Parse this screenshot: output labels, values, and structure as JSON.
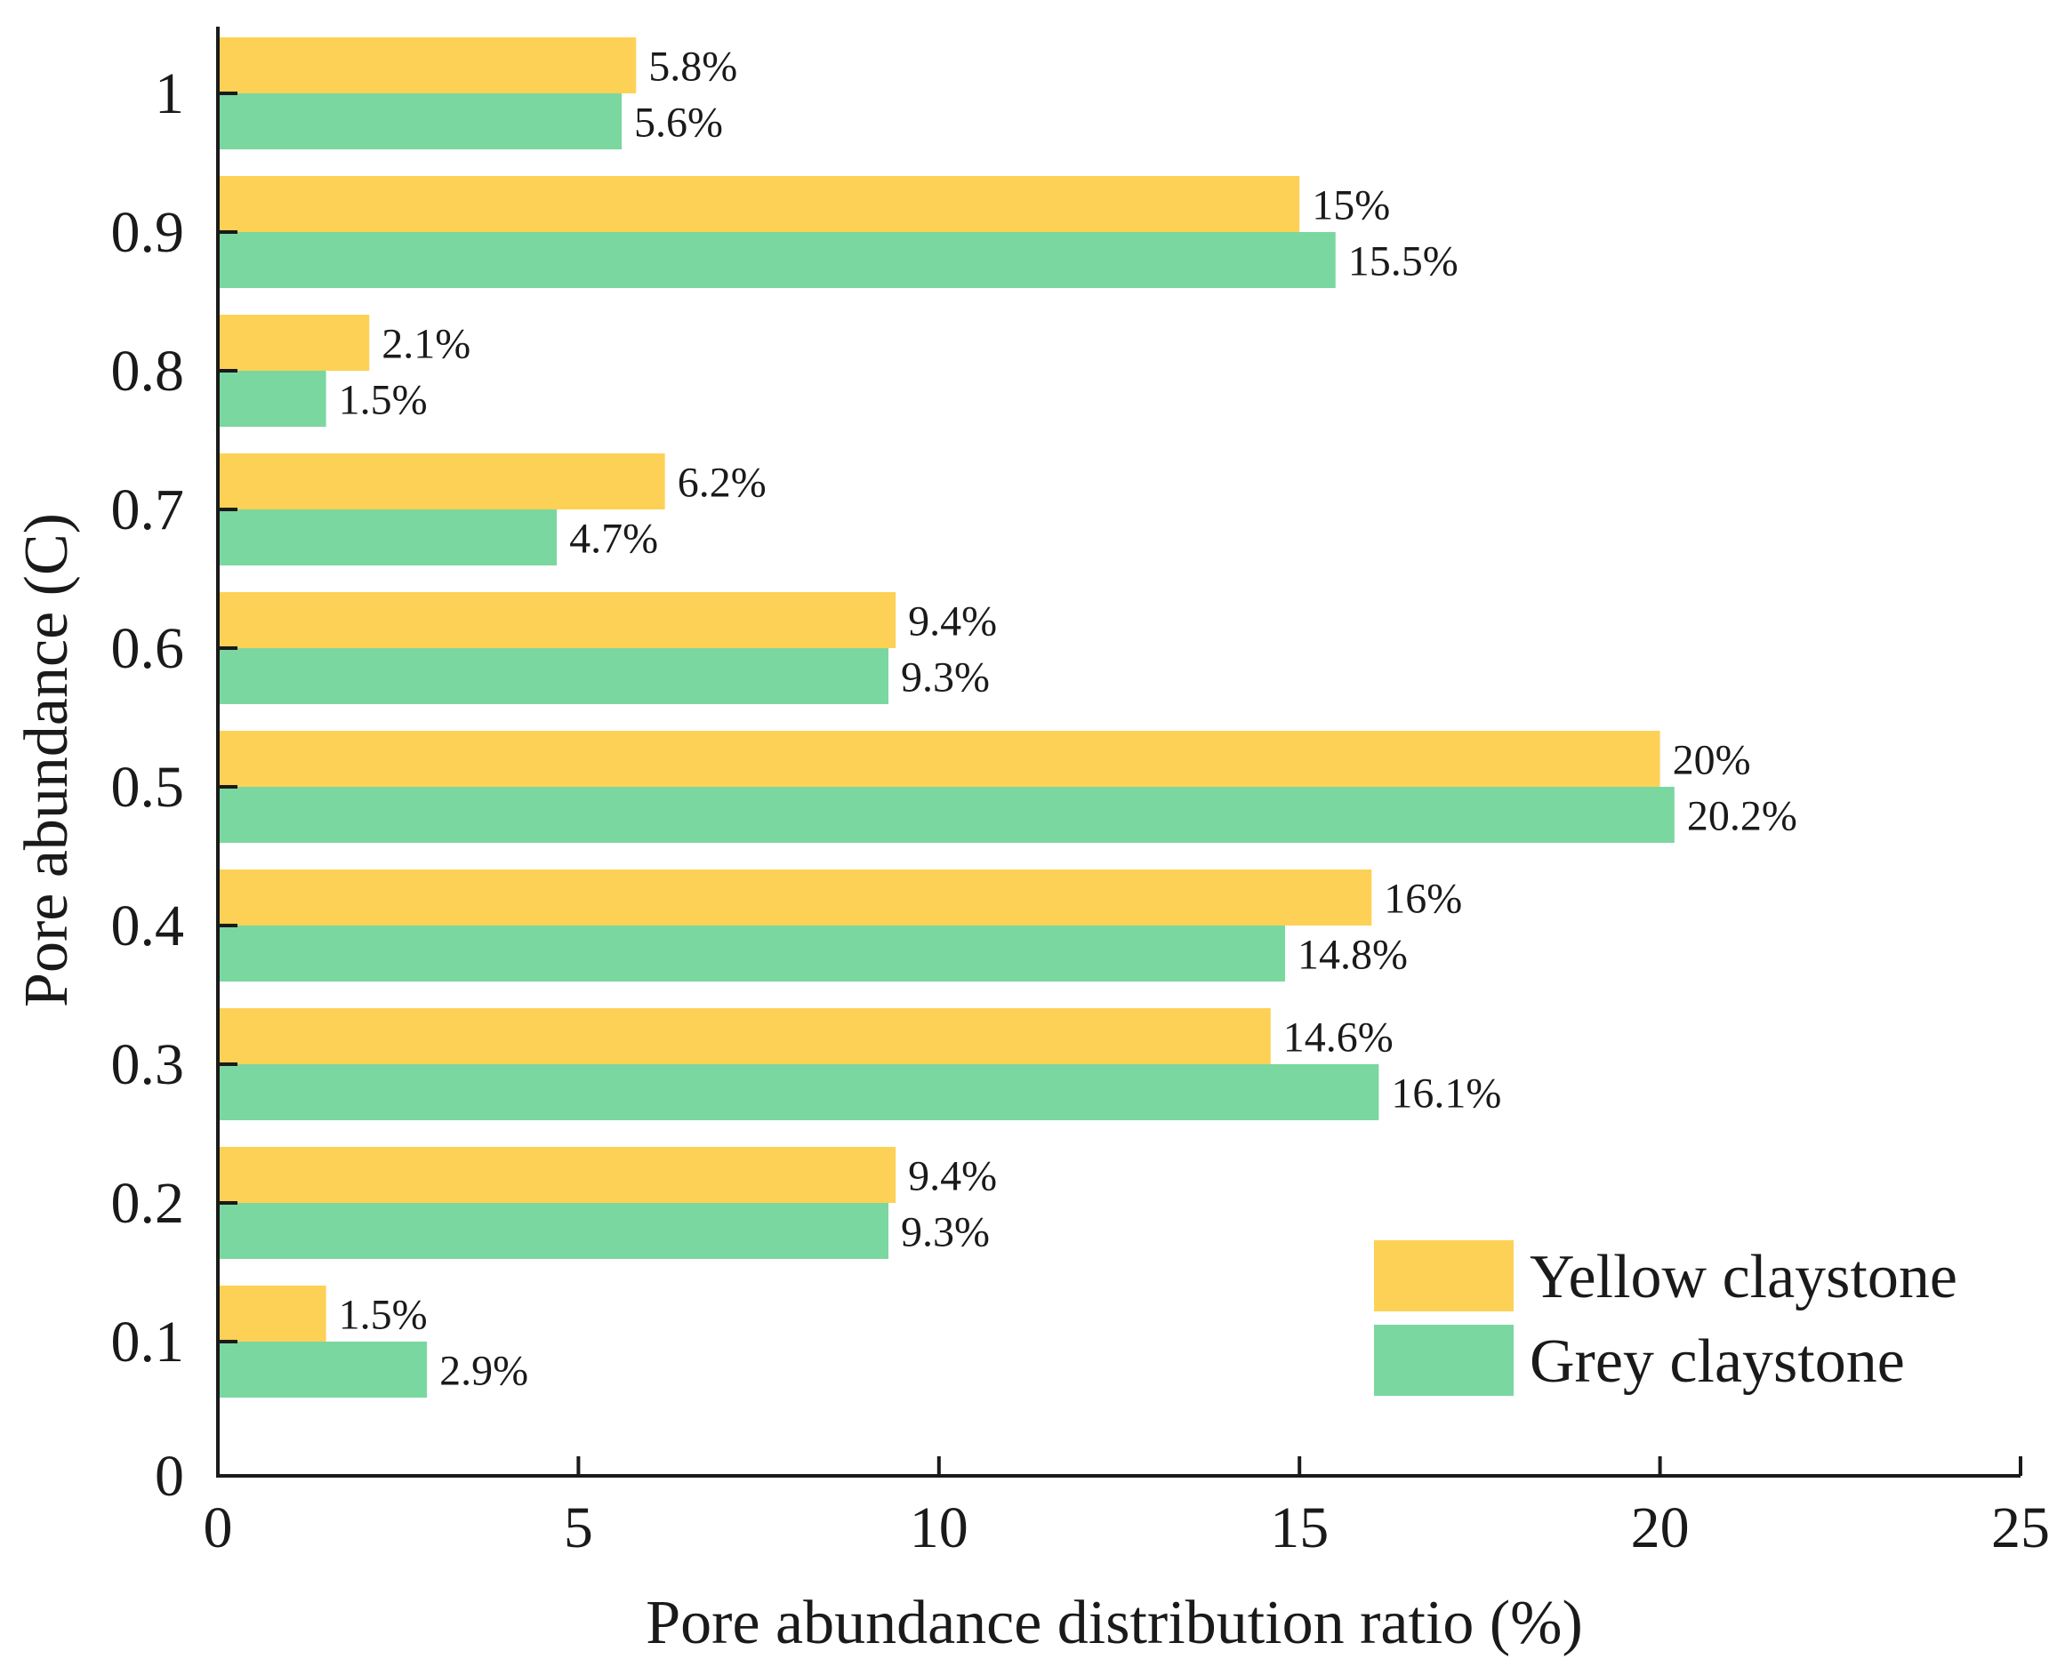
{
  "chart_data": {
    "type": "bar",
    "orientation": "horizontal",
    "xlabel": "Pore abundance distribution ratio (%)",
    "ylabel": "Pore abundance (C)",
    "xlim": [
      0,
      25
    ],
    "xticks": [
      "0",
      "5",
      "10",
      "15",
      "20",
      "25"
    ],
    "ylim": [
      0,
      1
    ],
    "yticks": [
      "0",
      "0.1",
      "0.2",
      "0.3",
      "0.4",
      "0.5",
      "0.6",
      "0.7",
      "0.8",
      "0.9",
      "1"
    ],
    "categories": [
      0.1,
      0.2,
      0.3,
      0.4,
      0.5,
      0.6,
      0.7,
      0.8,
      0.9,
      1
    ],
    "series": [
      {
        "name": "Yellow claystone",
        "color": "#FDD155",
        "values": [
          1.5,
          9.4,
          14.6,
          16,
          20,
          9.4,
          6.2,
          2.1,
          15,
          5.8
        ],
        "labels": [
          "1.5%",
          "9.4%",
          "14.6%",
          "16%",
          "20%",
          "9.4%",
          "6.2%",
          "2.1%",
          "15%",
          "5.8%"
        ]
      },
      {
        "name": "Grey claystone",
        "color": "#7AD7A0",
        "values": [
          2.9,
          9.3,
          16.1,
          14.8,
          20.2,
          9.3,
          4.7,
          1.5,
          15.5,
          5.6
        ],
        "labels": [
          "2.9%",
          "9.3%",
          "16.1%",
          "14.8%",
          "20.2%",
          "9.3%",
          "4.7%",
          "1.5%",
          "15.5%",
          "5.6%"
        ]
      }
    ],
    "legend_position": "bottom-right",
    "grid": false
  }
}
